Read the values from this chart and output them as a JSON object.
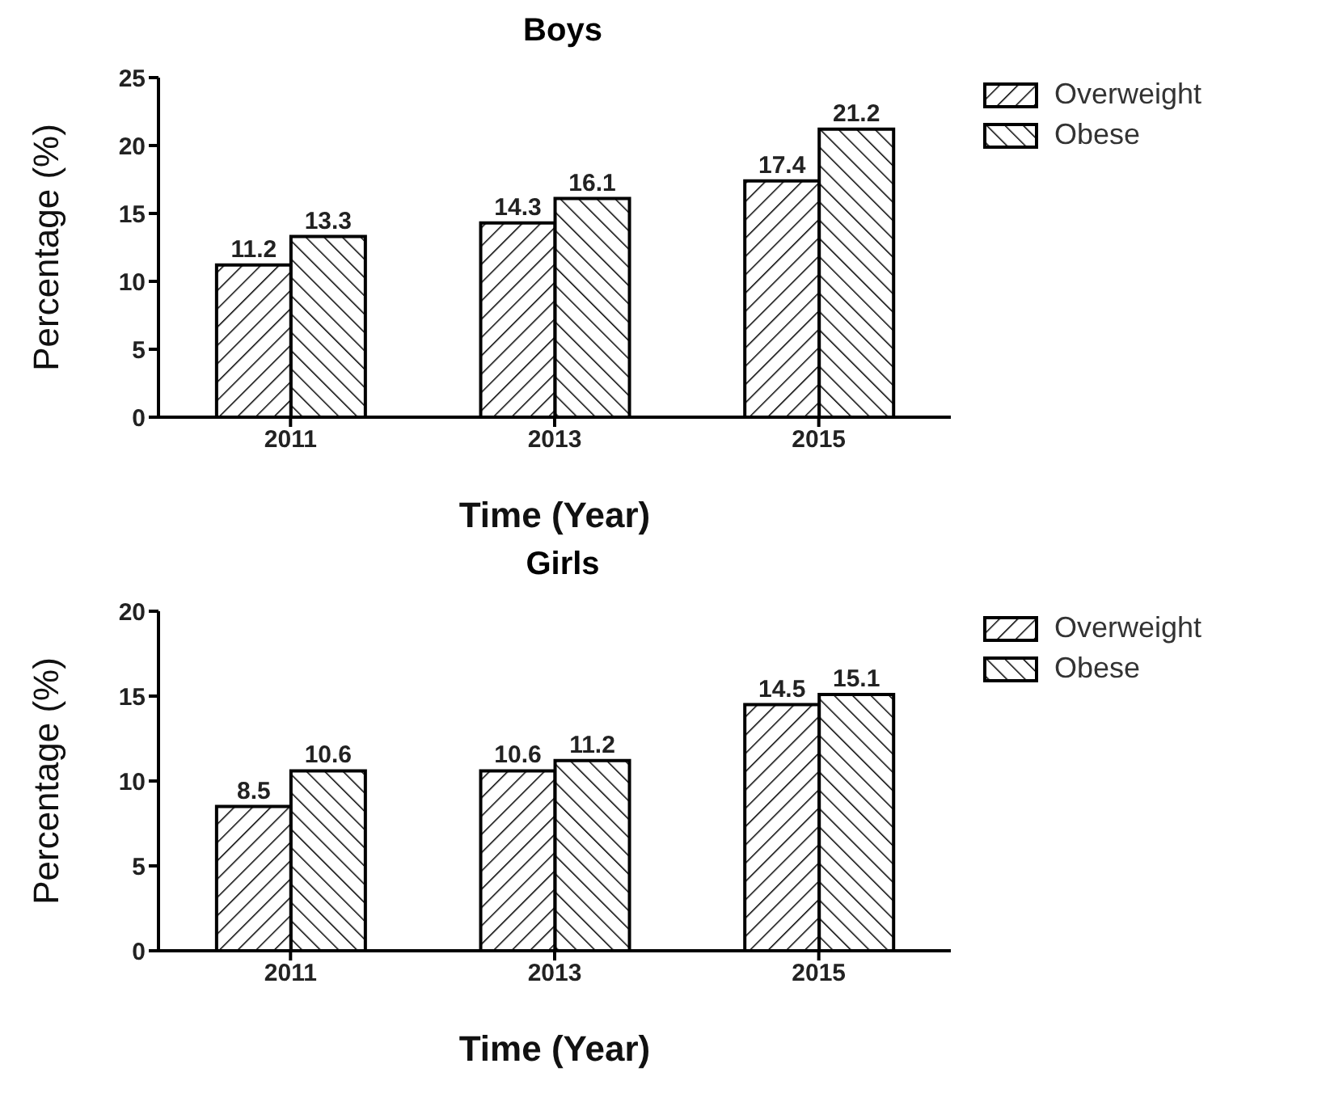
{
  "chart_data": [
    {
      "type": "bar",
      "title": "Boys",
      "xlabel": "Time (Year)",
      "ylabel": "Percentage (%)",
      "categories": [
        "2011",
        "2013",
        "2015"
      ],
      "series": [
        {
          "name": "Overweight",
          "color": "#000000",
          "values": [
            11.2,
            14.3,
            17.4
          ]
        },
        {
          "name": "Obese",
          "color": "#000000",
          "values": [
            13.3,
            16.1,
            21.2
          ]
        }
      ],
      "ylim": [
        0,
        25
      ],
      "yticks": [
        0,
        5,
        10,
        15,
        20,
        25
      ],
      "data_labels": true,
      "legend": "top right",
      "grid": false
    },
    {
      "type": "bar",
      "title": "Girls",
      "xlabel": "Time (Year)",
      "ylabel": "Percentage (%)",
      "categories": [
        "2011",
        "2013",
        "2015"
      ],
      "series": [
        {
          "name": "Overweight",
          "color": "#000000",
          "values": [
            8.5,
            10.6,
            14.5
          ]
        },
        {
          "name": "Obese",
          "color": "#000000",
          "values": [
            10.6,
            11.2,
            15.1
          ]
        }
      ],
      "ylim": [
        0,
        20
      ],
      "yticks": [
        0,
        5,
        10,
        15,
        20
      ],
      "data_labels": true,
      "legend": "top right",
      "grid": false
    }
  ]
}
